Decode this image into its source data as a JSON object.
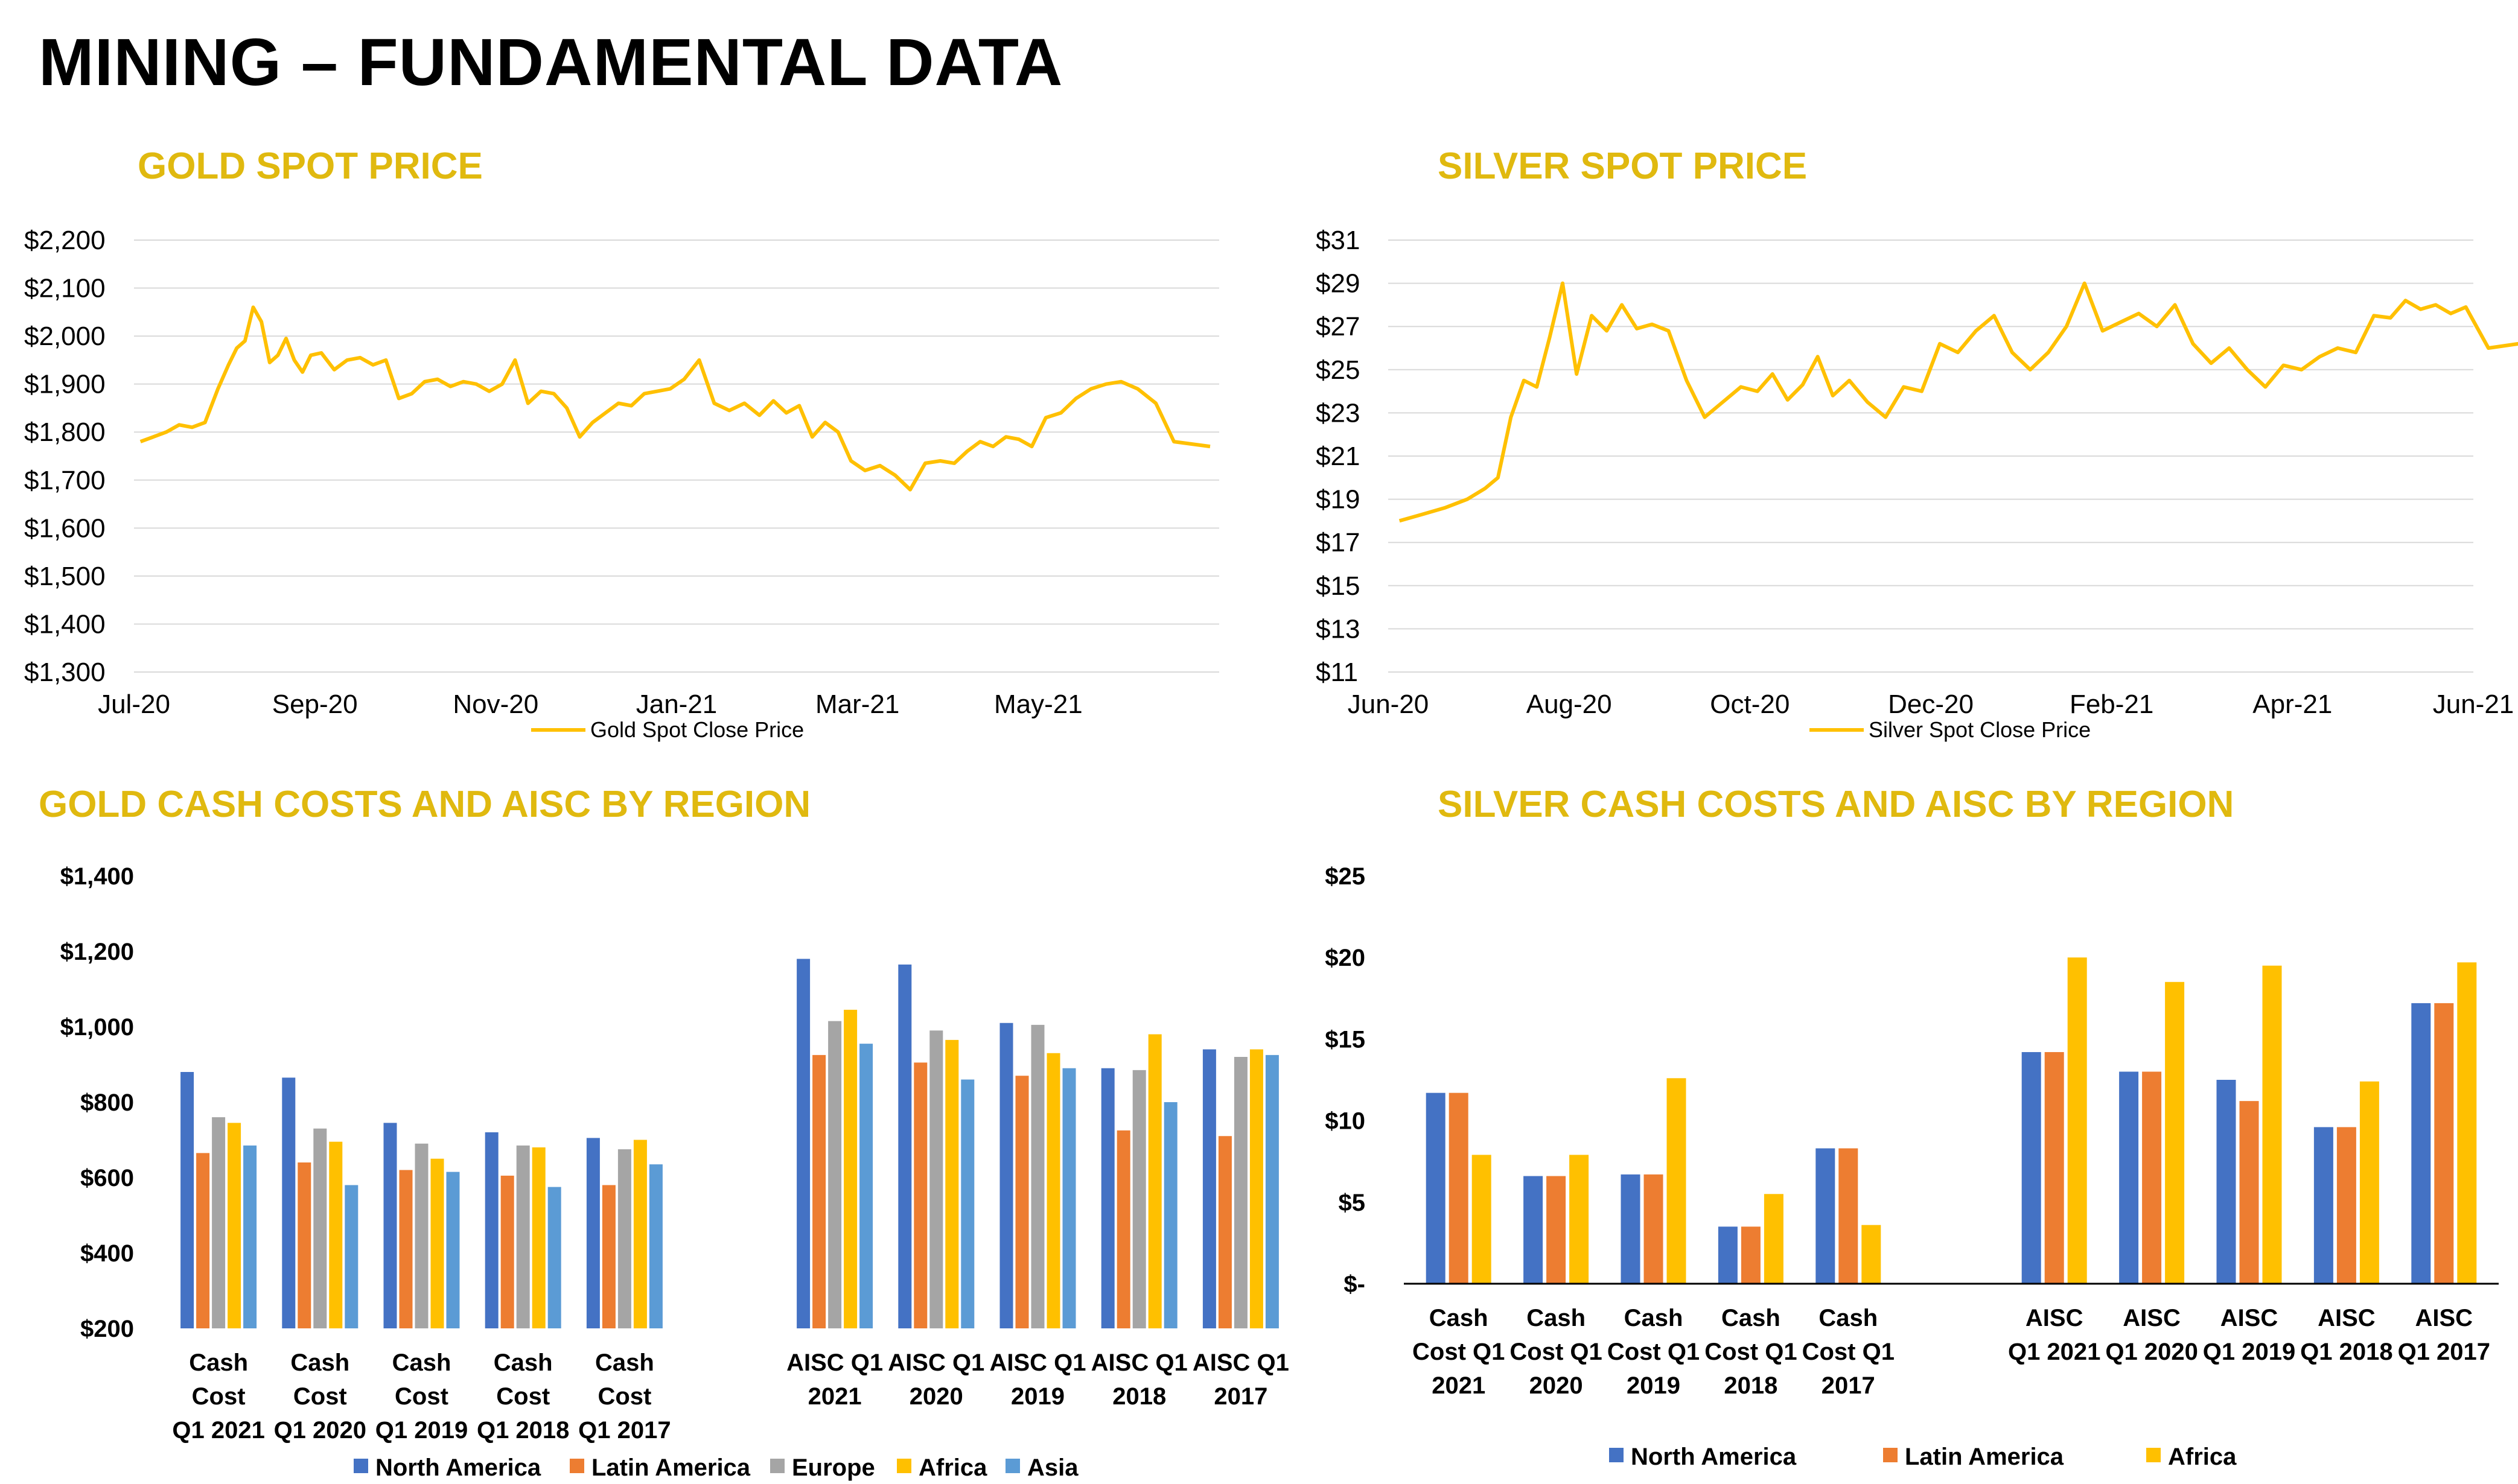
{
  "page": {
    "title": "MINING – FUNDAMENTAL DATA"
  },
  "colors": {
    "gold": "#FFC000",
    "title_gold": "#E0B90F",
    "north_america": "#4472C4",
    "latin_america": "#ED7D31",
    "europe": "#A5A5A5",
    "africa": "#FFC000",
    "asia": "#5B9BD5"
  },
  "chart_data": [
    {
      "id": "gold_spot",
      "type": "line",
      "title": "GOLD SPOT PRICE",
      "ylim": [
        1300,
        2200
      ],
      "y_ticks": [
        "$1,300",
        "$1,400",
        "$1,500",
        "$1,600",
        "$1,700",
        "$1,800",
        "$1,900",
        "$2,000",
        "$2,100",
        "$2,200"
      ],
      "x_ticks": [
        "Jul-20",
        "Sep-20",
        "Nov-20",
        "Jan-21",
        "Mar-21",
        "May-21"
      ],
      "grid": true,
      "legend": "bottom",
      "series": [
        {
          "name": "Gold Spot Close Price",
          "color": "#FFC000",
          "points": [
            [
              "Jul-20",
              1780
            ],
            [
              "Jul-20",
              1790
            ],
            [
              "Jul-20",
              1800
            ],
            [
              "Jul-20",
              1815
            ],
            [
              "Jul-20",
              1810
            ],
            [
              "Jul-20",
              1820
            ],
            [
              "Jul-20",
              1890
            ],
            [
              "Aug-20",
              1940
            ],
            [
              "Aug-20",
              1975
            ],
            [
              "Aug-20",
              1990
            ],
            [
              "Aug-20",
              2060
            ],
            [
              "Aug-20",
              2030
            ],
            [
              "Aug-20",
              1945
            ],
            [
              "Aug-20",
              1960
            ],
            [
              "Aug-20",
              1995
            ],
            [
              "Aug-20",
              1950
            ],
            [
              "Aug-20",
              1925
            ],
            [
              "Aug-20",
              1960
            ],
            [
              "Sep-20",
              1965
            ],
            [
              "Sep-20",
              1930
            ],
            [
              "Sep-20",
              1950
            ],
            [
              "Sep-20",
              1955
            ],
            [
              "Sep-20",
              1940
            ],
            [
              "Sep-20",
              1950
            ],
            [
              "Sep-20",
              1870
            ],
            [
              "Oct-20",
              1880
            ],
            [
              "Oct-20",
              1905
            ],
            [
              "Oct-20",
              1910
            ],
            [
              "Oct-20",
              1895
            ],
            [
              "Oct-20",
              1905
            ],
            [
              "Oct-20",
              1900
            ],
            [
              "Oct-20",
              1885
            ],
            [
              "Nov-20",
              1900
            ],
            [
              "Nov-20",
              1950
            ],
            [
              "Nov-20",
              1860
            ],
            [
              "Nov-20",
              1885
            ],
            [
              "Nov-20",
              1880
            ],
            [
              "Nov-20",
              1850
            ],
            [
              "Nov-20",
              1790
            ],
            [
              "Dec-20",
              1820
            ],
            [
              "Dec-20",
              1840
            ],
            [
              "Dec-20",
              1860
            ],
            [
              "Dec-20",
              1855
            ],
            [
              "Dec-20",
              1880
            ],
            [
              "Dec-20",
              1885
            ],
            [
              "Dec-20",
              1890
            ],
            [
              "Jan-21",
              1910
            ],
            [
              "Jan-21",
              1950
            ],
            [
              "Jan-21",
              1860
            ],
            [
              "Jan-21",
              1845
            ],
            [
              "Jan-21",
              1860
            ],
            [
              "Jan-21",
              1835
            ],
            [
              "Feb-21",
              1865
            ],
            [
              "Feb-21",
              1840
            ],
            [
              "Feb-21",
              1855
            ],
            [
              "Feb-21",
              1790
            ],
            [
              "Feb-21",
              1820
            ],
            [
              "Feb-21",
              1800
            ],
            [
              "Feb-21",
              1740
            ],
            [
              "Mar-21",
              1720
            ],
            [
              "Mar-21",
              1730
            ],
            [
              "Mar-21",
              1710
            ],
            [
              "Mar-21",
              1680
            ],
            [
              "Mar-21",
              1735
            ],
            [
              "Mar-21",
              1740
            ],
            [
              "Apr-21",
              1735
            ],
            [
              "Apr-21",
              1760
            ],
            [
              "Apr-21",
              1780
            ],
            [
              "Apr-21",
              1770
            ],
            [
              "Apr-21",
              1790
            ],
            [
              "Apr-21",
              1785
            ],
            [
              "Apr-21",
              1770
            ],
            [
              "May-21",
              1830
            ],
            [
              "May-21",
              1840
            ],
            [
              "May-21",
              1870
            ],
            [
              "May-21",
              1890
            ],
            [
              "May-21",
              1900
            ],
            [
              "May-21",
              1905
            ],
            [
              "Jun-21",
              1890
            ],
            [
              "Jun-21",
              1860
            ],
            [
              "Jun-21",
              1780
            ],
            [
              "Jun-21",
              1775
            ],
            [
              "Jun-21",
              1770
            ]
          ]
        }
      ]
    },
    {
      "id": "silver_spot",
      "type": "line",
      "title": "SILVER SPOT PRICE",
      "ylim": [
        11,
        31
      ],
      "y_ticks": [
        "$11",
        "$13",
        "$15",
        "$17",
        "$19",
        "$21",
        "$23",
        "$25",
        "$27",
        "$29",
        "$31"
      ],
      "x_ticks": [
        "Jun-20",
        "Aug-20",
        "Oct-20",
        "Dec-20",
        "Feb-21",
        "Apr-21",
        "Jun-21"
      ],
      "grid": true,
      "legend": "bottom",
      "series": [
        {
          "name": "Silver Spot Close Price",
          "color": "#FFC000",
          "points": [
            [
              "Jun-20",
              18
            ],
            [
              "Jun-20",
              18.3
            ],
            [
              "Jun-20",
              18.6
            ],
            [
              "Jun-20",
              19.0
            ],
            [
              "Jul-20",
              19.5
            ],
            [
              "Jul-20",
              20.0
            ],
            [
              "Jul-20",
              22.8
            ],
            [
              "Jul-20",
              24.5
            ],
            [
              "Jul-20",
              24.2
            ],
            [
              "Jul-20",
              26.5
            ],
            [
              "Jul-20",
              29.0
            ],
            [
              "Aug-20",
              24.8
            ],
            [
              "Aug-20",
              27.5
            ],
            [
              "Aug-20",
              26.8
            ],
            [
              "Aug-20",
              28.0
            ],
            [
              "Aug-20",
              26.9
            ],
            [
              "Aug-20",
              27.1
            ],
            [
              "Sep-20",
              26.8
            ],
            [
              "Sep-20",
              24.5
            ],
            [
              "Sep-20",
              22.8
            ],
            [
              "Sep-20",
              23.5
            ],
            [
              "Sep-20",
              24.2
            ],
            [
              "Oct-20",
              24.0
            ],
            [
              "Oct-20",
              24.8
            ],
            [
              "Oct-20",
              23.6
            ],
            [
              "Oct-20",
              24.3
            ],
            [
              "Oct-20",
              25.6
            ],
            [
              "Oct-20",
              23.8
            ],
            [
              "Nov-20",
              24.5
            ],
            [
              "Nov-20",
              23.5
            ],
            [
              "Nov-20",
              22.8
            ],
            [
              "Nov-20",
              24.2
            ],
            [
              "Nov-20",
              24.0
            ],
            [
              "Dec-20",
              26.2
            ],
            [
              "Dec-20",
              25.8
            ],
            [
              "Dec-20",
              26.8
            ],
            [
              "Dec-20",
              27.5
            ],
            [
              "Dec-20",
              25.8
            ],
            [
              "Jan-21",
              25.0
            ],
            [
              "Jan-21",
              25.8
            ],
            [
              "Jan-21",
              27.0
            ],
            [
              "Jan-21",
              29.0
            ],
            [
              "Jan-21",
              26.8
            ],
            [
              "Feb-21",
              27.2
            ],
            [
              "Feb-21",
              27.6
            ],
            [
              "Feb-21",
              27.0
            ],
            [
              "Feb-21",
              28.0
            ],
            [
              "Feb-21",
              26.2
            ],
            [
              "Mar-21",
              25.3
            ],
            [
              "Mar-21",
              26.0
            ],
            [
              "Mar-21",
              25.0
            ],
            [
              "Mar-21",
              24.2
            ],
            [
              "Mar-21",
              25.2
            ],
            [
              "Apr-21",
              25.0
            ],
            [
              "Apr-21",
              25.6
            ],
            [
              "Apr-21",
              26.0
            ],
            [
              "Apr-21",
              25.8
            ],
            [
              "Apr-21",
              27.5
            ],
            [
              "May-21",
              27.4
            ],
            [
              "May-21",
              28.2
            ],
            [
              "May-21",
              27.8
            ],
            [
              "May-21",
              28.0
            ],
            [
              "May-21",
              27.6
            ],
            [
              "May-21",
              27.9
            ],
            [
              "Jun-21",
              26.0
            ],
            [
              "Jun-21",
              26.2
            ],
            [
              "Jun-21",
              25.8
            ]
          ]
        }
      ]
    },
    {
      "id": "gold_costs",
      "type": "bar",
      "title": "GOLD CASH COSTS AND AISC BY REGION",
      "ylim": [
        200,
        1400
      ],
      "y_ticks": [
        "$200",
        "$400",
        "$600",
        "$800",
        "$1,000",
        "$1,200",
        "$1,400"
      ],
      "legend": "bottom",
      "category_groups": [
        {
          "labels": [
            [
              "Cash",
              "Cost",
              "Q1 2021"
            ],
            [
              "Cash",
              "Cost",
              "Q1 2020"
            ],
            [
              "Cash",
              "Cost",
              "Q1 2019"
            ],
            [
              "Cash",
              "Cost",
              "Q1 2018"
            ],
            [
              "Cash",
              "Cost",
              "Q1 2017"
            ]
          ]
        },
        {
          "labels": [
            [
              "AISC Q1",
              "2021"
            ],
            [
              "AISC Q1",
              "2020"
            ],
            [
              "AISC Q1",
              "2019"
            ],
            [
              "AISC Q1",
              "2018"
            ],
            [
              "AISC Q1",
              "2017"
            ]
          ]
        }
      ],
      "series": [
        {
          "name": "North America",
          "color": "#4472C4",
          "values": [
            880,
            865,
            745,
            720,
            705,
            1180,
            1165,
            1010,
            890,
            940
          ]
        },
        {
          "name": "Latin America",
          "color": "#ED7D31",
          "values": [
            665,
            640,
            620,
            605,
            580,
            925,
            905,
            870,
            725,
            710
          ]
        },
        {
          "name": "Europe",
          "color": "#A5A5A5",
          "values": [
            760,
            730,
            690,
            685,
            675,
            1015,
            990,
            1005,
            885,
            920
          ]
        },
        {
          "name": "Africa",
          "color": "#FFC000",
          "values": [
            745,
            695,
            650,
            680,
            700,
            1045,
            965,
            930,
            980,
            940
          ]
        },
        {
          "name": "Asia",
          "color": "#5B9BD5",
          "values": [
            685,
            580,
            615,
            575,
            635,
            955,
            860,
            890,
            800,
            925
          ]
        }
      ]
    },
    {
      "id": "silver_costs",
      "type": "bar",
      "title": "SILVER CASH COSTS AND AISC BY REGION",
      "ylim": [
        0,
        25
      ],
      "y_ticks": [
        "$-",
        "$5",
        "$10",
        "$15",
        "$20",
        "$25"
      ],
      "legend": "bottom",
      "category_groups": [
        {
          "labels": [
            [
              "Cash",
              "Cost Q1",
              "2021"
            ],
            [
              "Cash",
              "Cost Q1",
              "2020"
            ],
            [
              "Cash",
              "Cost Q1",
              "2019"
            ],
            [
              "Cash",
              "Cost Q1",
              "2018"
            ],
            [
              "Cash",
              "Cost Q1",
              "2017"
            ]
          ]
        },
        {
          "labels": [
            [
              "AISC",
              "Q1 2021"
            ],
            [
              "AISC",
              "Q1 2020"
            ],
            [
              "AISC",
              "Q1 2019"
            ],
            [
              "AISC",
              "Q1 2018"
            ],
            [
              "AISC",
              "Q1 2017"
            ]
          ]
        }
      ],
      "series": [
        {
          "name": "North America",
          "color": "#4472C4",
          "values": [
            11.7,
            6.6,
            6.7,
            3.5,
            8.3,
            14.2,
            13.0,
            12.5,
            9.6,
            17.2
          ]
        },
        {
          "name": "Latin America",
          "color": "#ED7D31",
          "values": [
            11.7,
            6.6,
            6.7,
            3.5,
            8.3,
            14.2,
            13.0,
            11.2,
            9.6,
            17.2
          ]
        },
        {
          "name": "Africa",
          "color": "#FFC000",
          "values": [
            7.9,
            7.9,
            12.6,
            5.5,
            3.6,
            20.0,
            18.5,
            19.5,
            12.4,
            19.7
          ]
        }
      ]
    }
  ]
}
